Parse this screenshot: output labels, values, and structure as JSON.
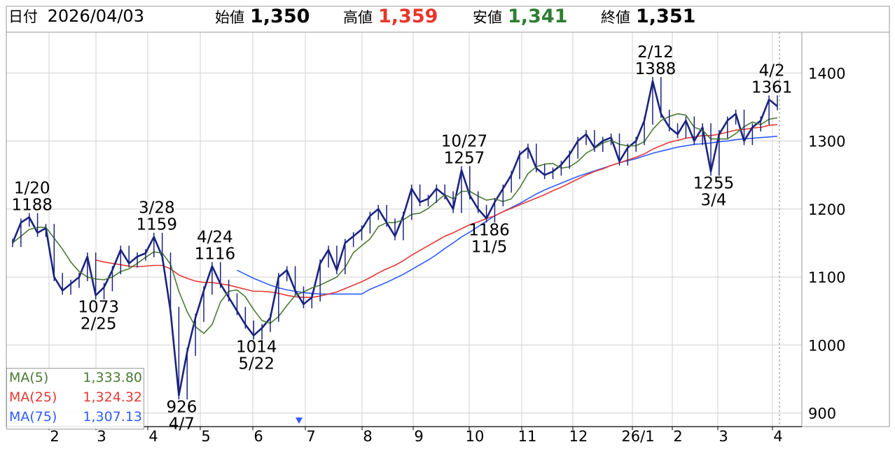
{
  "header": {
    "date_label": "日付",
    "date_value": "2026/04/03",
    "open_label": "始値",
    "open_value": "1,350",
    "high_label": "高値",
    "high_value": "1,359",
    "low_label": "安値",
    "low_value": "1,341",
    "close_label": "終値",
    "close_value": "1,351"
  },
  "colors": {
    "up": "#1a237e",
    "high": "#e8352a",
    "low": "#2e7d32",
    "ma5": "#4a7a34",
    "ma25": "#e53935",
    "ma75": "#2f5cff"
  },
  "ma_legend": [
    {
      "name": "MA(5)",
      "value": "1,333.80",
      "color": "#4a7a34"
    },
    {
      "name": "MA(25)",
      "value": "1,324.32",
      "color": "#e53935"
    },
    {
      "name": "MA(75)",
      "value": "1,307.13",
      "color": "#2f5cff"
    }
  ],
  "chart_data": {
    "type": "line",
    "ylim": [
      880,
      1460
    ],
    "y_ticks": [
      "900",
      "1000",
      "1100",
      "1200",
      "1300",
      "1400"
    ],
    "x_tick_labels": [
      "2",
      "3",
      "4",
      "5",
      "6",
      "7",
      "8",
      "9",
      "10",
      "11",
      "12",
      "26/1",
      "2",
      "3",
      "4"
    ],
    "series": [
      {
        "name": "Price",
        "values": [
          1150,
          1180,
          1188,
          1165,
          1172,
          1100,
          1080,
          1090,
          1100,
          1130,
          1073,
          1085,
          1110,
          1140,
          1120,
          1130,
          1135,
          1159,
          1130,
          1050,
          926,
          990,
          1040,
          1080,
          1116,
          1090,
          1070,
          1050,
          1030,
          1014,
          1025,
          1040,
          1100,
          1110,
          1080,
          1060,
          1070,
          1120,
          1140,
          1110,
          1150,
          1160,
          1170,
          1190,
          1200,
          1180,
          1160,
          1190,
          1230,
          1210,
          1215,
          1230,
          1220,
          1200,
          1257,
          1220,
          1200,
          1186,
          1210,
          1230,
          1250,
          1280,
          1290,
          1260,
          1250,
          1255,
          1265,
          1280,
          1300,
          1310,
          1290,
          1300,
          1305,
          1270,
          1290,
          1300,
          1330,
          1388,
          1340,
          1320,
          1310,
          1330,
          1300,
          1320,
          1255,
          1310,
          1330,
          1340,
          1300,
          1320,
          1330,
          1361,
          1351
        ]
      },
      {
        "name": "MA(5)",
        "values": [
          1150,
          1160,
          1170,
          1173,
          1173,
          1157,
          1141,
          1122,
          1108,
          1100,
          1097,
          1096,
          1100,
          1108,
          1112,
          1120,
          1129,
          1137,
          1135,
          1119,
          1079,
          1049,
          1027,
          1017,
          1030,
          1063,
          1079,
          1081,
          1071,
          1052,
          1036,
          1032,
          1042,
          1058,
          1073,
          1078,
          1084,
          1088,
          1094,
          1100,
          1114,
          1136,
          1146,
          1156,
          1174,
          1180,
          1180,
          1184,
          1192,
          1194,
          1201,
          1211,
          1221,
          1215,
          1226,
          1226,
          1219,
          1213,
          1215,
          1211,
          1215,
          1231,
          1252,
          1262,
          1266,
          1267,
          1260,
          1262,
          1270,
          1282,
          1289,
          1297,
          1301,
          1295,
          1293,
          1293,
          1299,
          1317,
          1330,
          1336,
          1340,
          1338,
          1320,
          1316,
          1303,
          1303,
          1303,
          1311,
          1321,
          1328,
          1324,
          1332,
          1334
        ]
      },
      {
        "name": "MA(25)",
        "values": [
          null,
          null,
          null,
          null,
          null,
          null,
          null,
          null,
          null,
          null,
          1125,
          1122,
          1120,
          1118,
          1116,
          1115,
          1116,
          1117,
          1117,
          1112,
          1103,
          1098,
          1094,
          1092,
          1092,
          1090,
          1088,
          1085,
          1082,
          1079,
          1079,
          1078,
          1076,
          1073,
          1071,
          1070,
          1070,
          1072,
          1075,
          1078,
          1083,
          1088,
          1093,
          1099,
          1106,
          1112,
          1117,
          1124,
          1132,
          1139,
          1146,
          1153,
          1160,
          1165,
          1171,
          1177,
          1181,
          1186,
          1190,
          1196,
          1201,
          1206,
          1211,
          1216,
          1221,
          1227,
          1232,
          1238,
          1244,
          1250,
          1255,
          1259,
          1264,
          1268,
          1272,
          1276,
          1281,
          1288,
          1293,
          1298,
          1301,
          1304,
          1306,
          1308,
          1308,
          1310,
          1313,
          1316,
          1317,
          1319,
          1320,
          1323,
          1324
        ]
      },
      {
        "name": "MA(75)",
        "values": [
          null,
          null,
          null,
          null,
          null,
          null,
          null,
          null,
          null,
          null,
          null,
          null,
          null,
          null,
          null,
          null,
          null,
          null,
          null,
          null,
          null,
          null,
          null,
          null,
          null,
          null,
          null,
          1110,
          1104,
          1098,
          1093,
          1088,
          1084,
          1081,
          1079,
          1077,
          1076,
          1075,
          1075,
          1075,
          1075,
          1075,
          1075,
          1082,
          1087,
          1092,
          1098,
          1104,
          1111,
          1118,
          1125,
          1133,
          1142,
          1150,
          1159,
          1166,
          1174,
          1182,
          1190,
          1196,
          1202,
          1208,
          1215,
          1222,
          1228,
          1233,
          1238,
          1243,
          1248,
          1252,
          1256,
          1260,
          1264,
          1268,
          1271,
          1274,
          1278,
          1282,
          1285,
          1288,
          1291,
          1293,
          1295,
          1296,
          1297,
          1299,
          1300,
          1302,
          1303,
          1304,
          1305,
          1306,
          1307
        ]
      }
    ],
    "annotations": [
      {
        "date": "1/20",
        "value": 1188,
        "position": "above",
        "index": 2
      },
      {
        "date": "2/25",
        "value": 1073,
        "position": "below",
        "index": 10
      },
      {
        "date": "3/28",
        "value": 1159,
        "position": "above",
        "index": 17
      },
      {
        "date": "4/7",
        "value": 926,
        "position": "below",
        "index": 20
      },
      {
        "date": "4/24",
        "value": 1116,
        "position": "above",
        "index": 24
      },
      {
        "date": "5/22",
        "value": 1014,
        "position": "below",
        "index": 29
      },
      {
        "date": "10/27",
        "value": 1257,
        "position": "above",
        "index": 54
      },
      {
        "date": "11/5",
        "value": 1186,
        "position": "below",
        "index": 57
      },
      {
        "date": "2/12",
        "value": 1388,
        "position": "above",
        "index": 77
      },
      {
        "date": "3/4",
        "value": 1255,
        "position": "below",
        "index": 84
      },
      {
        "date": "4/2",
        "value": 1361,
        "position": "above",
        "index": 91
      }
    ],
    "grid": true,
    "legend": "bottom-left"
  }
}
